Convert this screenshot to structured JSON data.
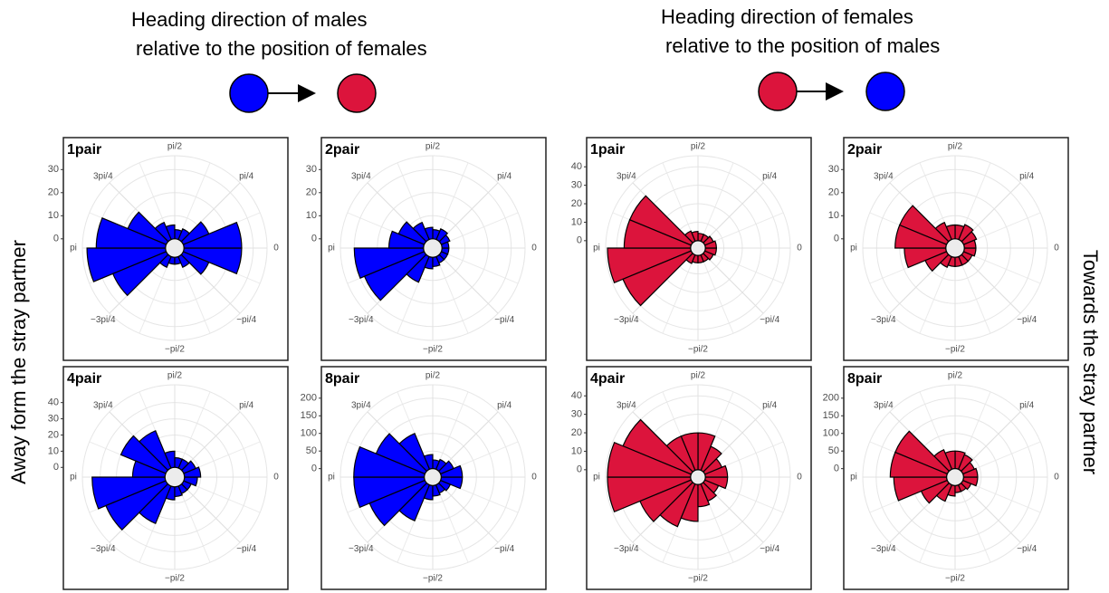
{
  "headers": [
    {
      "line1": "Heading direction of males",
      "line2": "relative to the position of females"
    },
    {
      "line1": "Heading direction of females",
      "line2": "relative to the position of males"
    }
  ],
  "side_labels": {
    "left": "Away form the stray partner",
    "right": "Towards the stray partner"
  },
  "chart_data": [
    {
      "type": "polar-bar",
      "title": "1pair",
      "color": "#0000ff",
      "values": [
        34,
        25,
        5,
        3,
        3,
        5,
        12,
        25,
        25,
        12,
        5,
        4,
        6,
        8,
        18,
        30
      ],
      "ylim": [
        -4,
        36
      ],
      "yticks": [
        0,
        10,
        20,
        30
      ],
      "xticks": [
        0,
        {
          "value": 0.7854,
          "label": "pi/4"
        },
        {
          "value": 1.5708,
          "label": "pi/2"
        },
        {
          "value": 2.3562,
          "label": "3pi/4"
        },
        {
          "value": 3.1416,
          "label": "pi"
        },
        {
          "value": -2.3562,
          "label": "−3pi/4"
        },
        {
          "value": -1.5708,
          "label": "−pi/2"
        },
        {
          "value": -0.7854,
          "label": "−pi/4"
        }
      ]
    },
    {
      "type": "polar-bar",
      "title": "2pair",
      "color": "#0000ff",
      "values": [
        30,
        28,
        12,
        5,
        4,
        3,
        3,
        3,
        3,
        4,
        5,
        4,
        5,
        8,
        12,
        15
      ],
      "ylim": [
        -4,
        36
      ],
      "yticks": [
        0,
        10,
        20,
        30
      ],
      "xticks": [
        0,
        {
          "value": 0.7854,
          "label": "pi/4"
        },
        {
          "value": 1.5708,
          "label": "pi/2"
        },
        {
          "value": 2.3562,
          "label": "3pi/4"
        },
        {
          "value": 3.1416,
          "label": "pi"
        },
        {
          "value": -2.3562,
          "label": "−3pi/4"
        },
        {
          "value": -1.5708,
          "label": "−pi/2"
        },
        {
          "value": -0.7854,
          "label": "−pi/4"
        }
      ]
    },
    {
      "type": "polar-bar",
      "title": "4pair",
      "color": "#0000ff",
      "values": [
        45,
        40,
        25,
        8,
        6,
        5,
        5,
        8,
        10,
        8,
        6,
        6,
        10,
        25,
        30,
        20
      ],
      "ylim": [
        -6,
        51
      ],
      "yticks": [
        0,
        10,
        20,
        30,
        40
      ],
      "xticks": [
        0,
        {
          "value": 0.7854,
          "label": "pi/4"
        },
        {
          "value": 1.5708,
          "label": "pi/2"
        },
        {
          "value": 2.3562,
          "label": "3pi/4"
        },
        {
          "value": 3.1416,
          "label": "pi"
        },
        {
          "value": -2.3562,
          "label": "−3pi/4"
        },
        {
          "value": -1.5708,
          "label": "−pi/2"
        },
        {
          "value": -0.7854,
          "label": "−pi/4"
        }
      ]
    },
    {
      "type": "polar-bar",
      "title": "8pair",
      "color": "#0000ff",
      "values": [
        200,
        170,
        110,
        40,
        30,
        25,
        30,
        60,
        60,
        40,
        30,
        25,
        40,
        110,
        150,
        200
      ],
      "ylim": [
        -24,
        238
      ],
      "yticks": [
        0,
        50,
        100,
        150,
        200
      ],
      "xticks": [
        0,
        {
          "value": 0.7854,
          "label": "pi/4"
        },
        {
          "value": 1.5708,
          "label": "pi/2"
        },
        {
          "value": 2.3562,
          "label": "3pi/4"
        },
        {
          "value": 3.1416,
          "label": "pi"
        },
        {
          "value": -2.3562,
          "label": "−3pi/4"
        },
        {
          "value": -1.5708,
          "label": "−pi/2"
        },
        {
          "value": -0.7854,
          "label": "−pi/4"
        }
      ]
    },
    {
      "type": "polar-bar",
      "title": "1pair",
      "color": "#dc143c",
      "values": [
        45,
        40,
        5,
        4,
        4,
        4,
        5,
        6,
        6,
        5,
        4,
        4,
        5,
        6,
        36,
        36
      ],
      "ylim": [
        -4,
        46
      ],
      "yticks": [
        0,
        10,
        20,
        30,
        40
      ],
      "xticks": [
        0,
        {
          "value": 0.7854,
          "label": "pi/4"
        },
        {
          "value": 1.5708,
          "label": "pi/2"
        },
        {
          "value": 2.3562,
          "label": "3pi/4"
        },
        {
          "value": 3.1416,
          "label": "pi"
        },
        {
          "value": -2.3562,
          "label": "−3pi/4"
        },
        {
          "value": -1.5708,
          "label": "−pi/2"
        },
        {
          "value": -0.7854,
          "label": "−pi/4"
        }
      ]
    },
    {
      "type": "polar-bar",
      "title": "2pair",
      "color": "#dc143c",
      "values": [
        18,
        10,
        5,
        4,
        4,
        4,
        4,
        5,
        5,
        6,
        7,
        6,
        6,
        8,
        22,
        22
      ],
      "ylim": [
        -4,
        36
      ],
      "yticks": [
        0,
        10,
        20,
        30
      ],
      "xticks": [
        0,
        {
          "value": 0.7854,
          "label": "pi/4"
        },
        {
          "value": 1.5708,
          "label": "pi/2"
        },
        {
          "value": 2.3562,
          "label": "3pi/4"
        },
        {
          "value": 3.1416,
          "label": "pi"
        },
        {
          "value": -2.3562,
          "label": "−3pi/4"
        },
        {
          "value": -1.5708,
          "label": "−pi/2"
        },
        {
          "value": -0.7854,
          "label": "−pi/4"
        }
      ]
    },
    {
      "type": "polar-bar",
      "title": "4pair",
      "color": "#dc143c",
      "values": [
        45,
        30,
        25,
        20,
        12,
        10,
        8,
        12,
        12,
        10,
        14,
        20,
        20,
        20,
        40,
        45
      ],
      "ylim": [
        -4,
        46
      ],
      "yticks": [
        0,
        10,
        20,
        30,
        40
      ],
      "xticks": [
        0,
        {
          "value": 0.7854,
          "label": "pi/4"
        },
        {
          "value": 1.5708,
          "label": "pi/2"
        },
        {
          "value": 2.3562,
          "label": "3pi/4"
        },
        {
          "value": 3.1416,
          "label": "pi"
        },
        {
          "value": -2.3562,
          "label": "−3pi/4"
        },
        {
          "value": -1.5708,
          "label": "−pi/2"
        },
        {
          "value": -0.7854,
          "label": "−pi/4"
        }
      ]
    },
    {
      "type": "polar-bar",
      "title": "8pair",
      "color": "#dc143c",
      "values": [
        150,
        80,
        50,
        30,
        20,
        20,
        25,
        40,
        40,
        35,
        45,
        50,
        50,
        60,
        160,
        160
      ],
      "ylim": [
        -24,
        238
      ],
      "yticks": [
        0,
        50,
        100,
        150,
        200
      ],
      "xticks": [
        0,
        {
          "value": 0.7854,
          "label": "pi/4"
        },
        {
          "value": 1.5708,
          "label": "pi/2"
        },
        {
          "value": 2.3562,
          "label": "3pi/4"
        },
        {
          "value": 3.1416,
          "label": "pi"
        },
        {
          "value": -2.3562,
          "label": "−3pi/4"
        },
        {
          "value": -1.5708,
          "label": "−pi/2"
        },
        {
          "value": -0.7854,
          "label": "−pi/4"
        }
      ]
    }
  ]
}
